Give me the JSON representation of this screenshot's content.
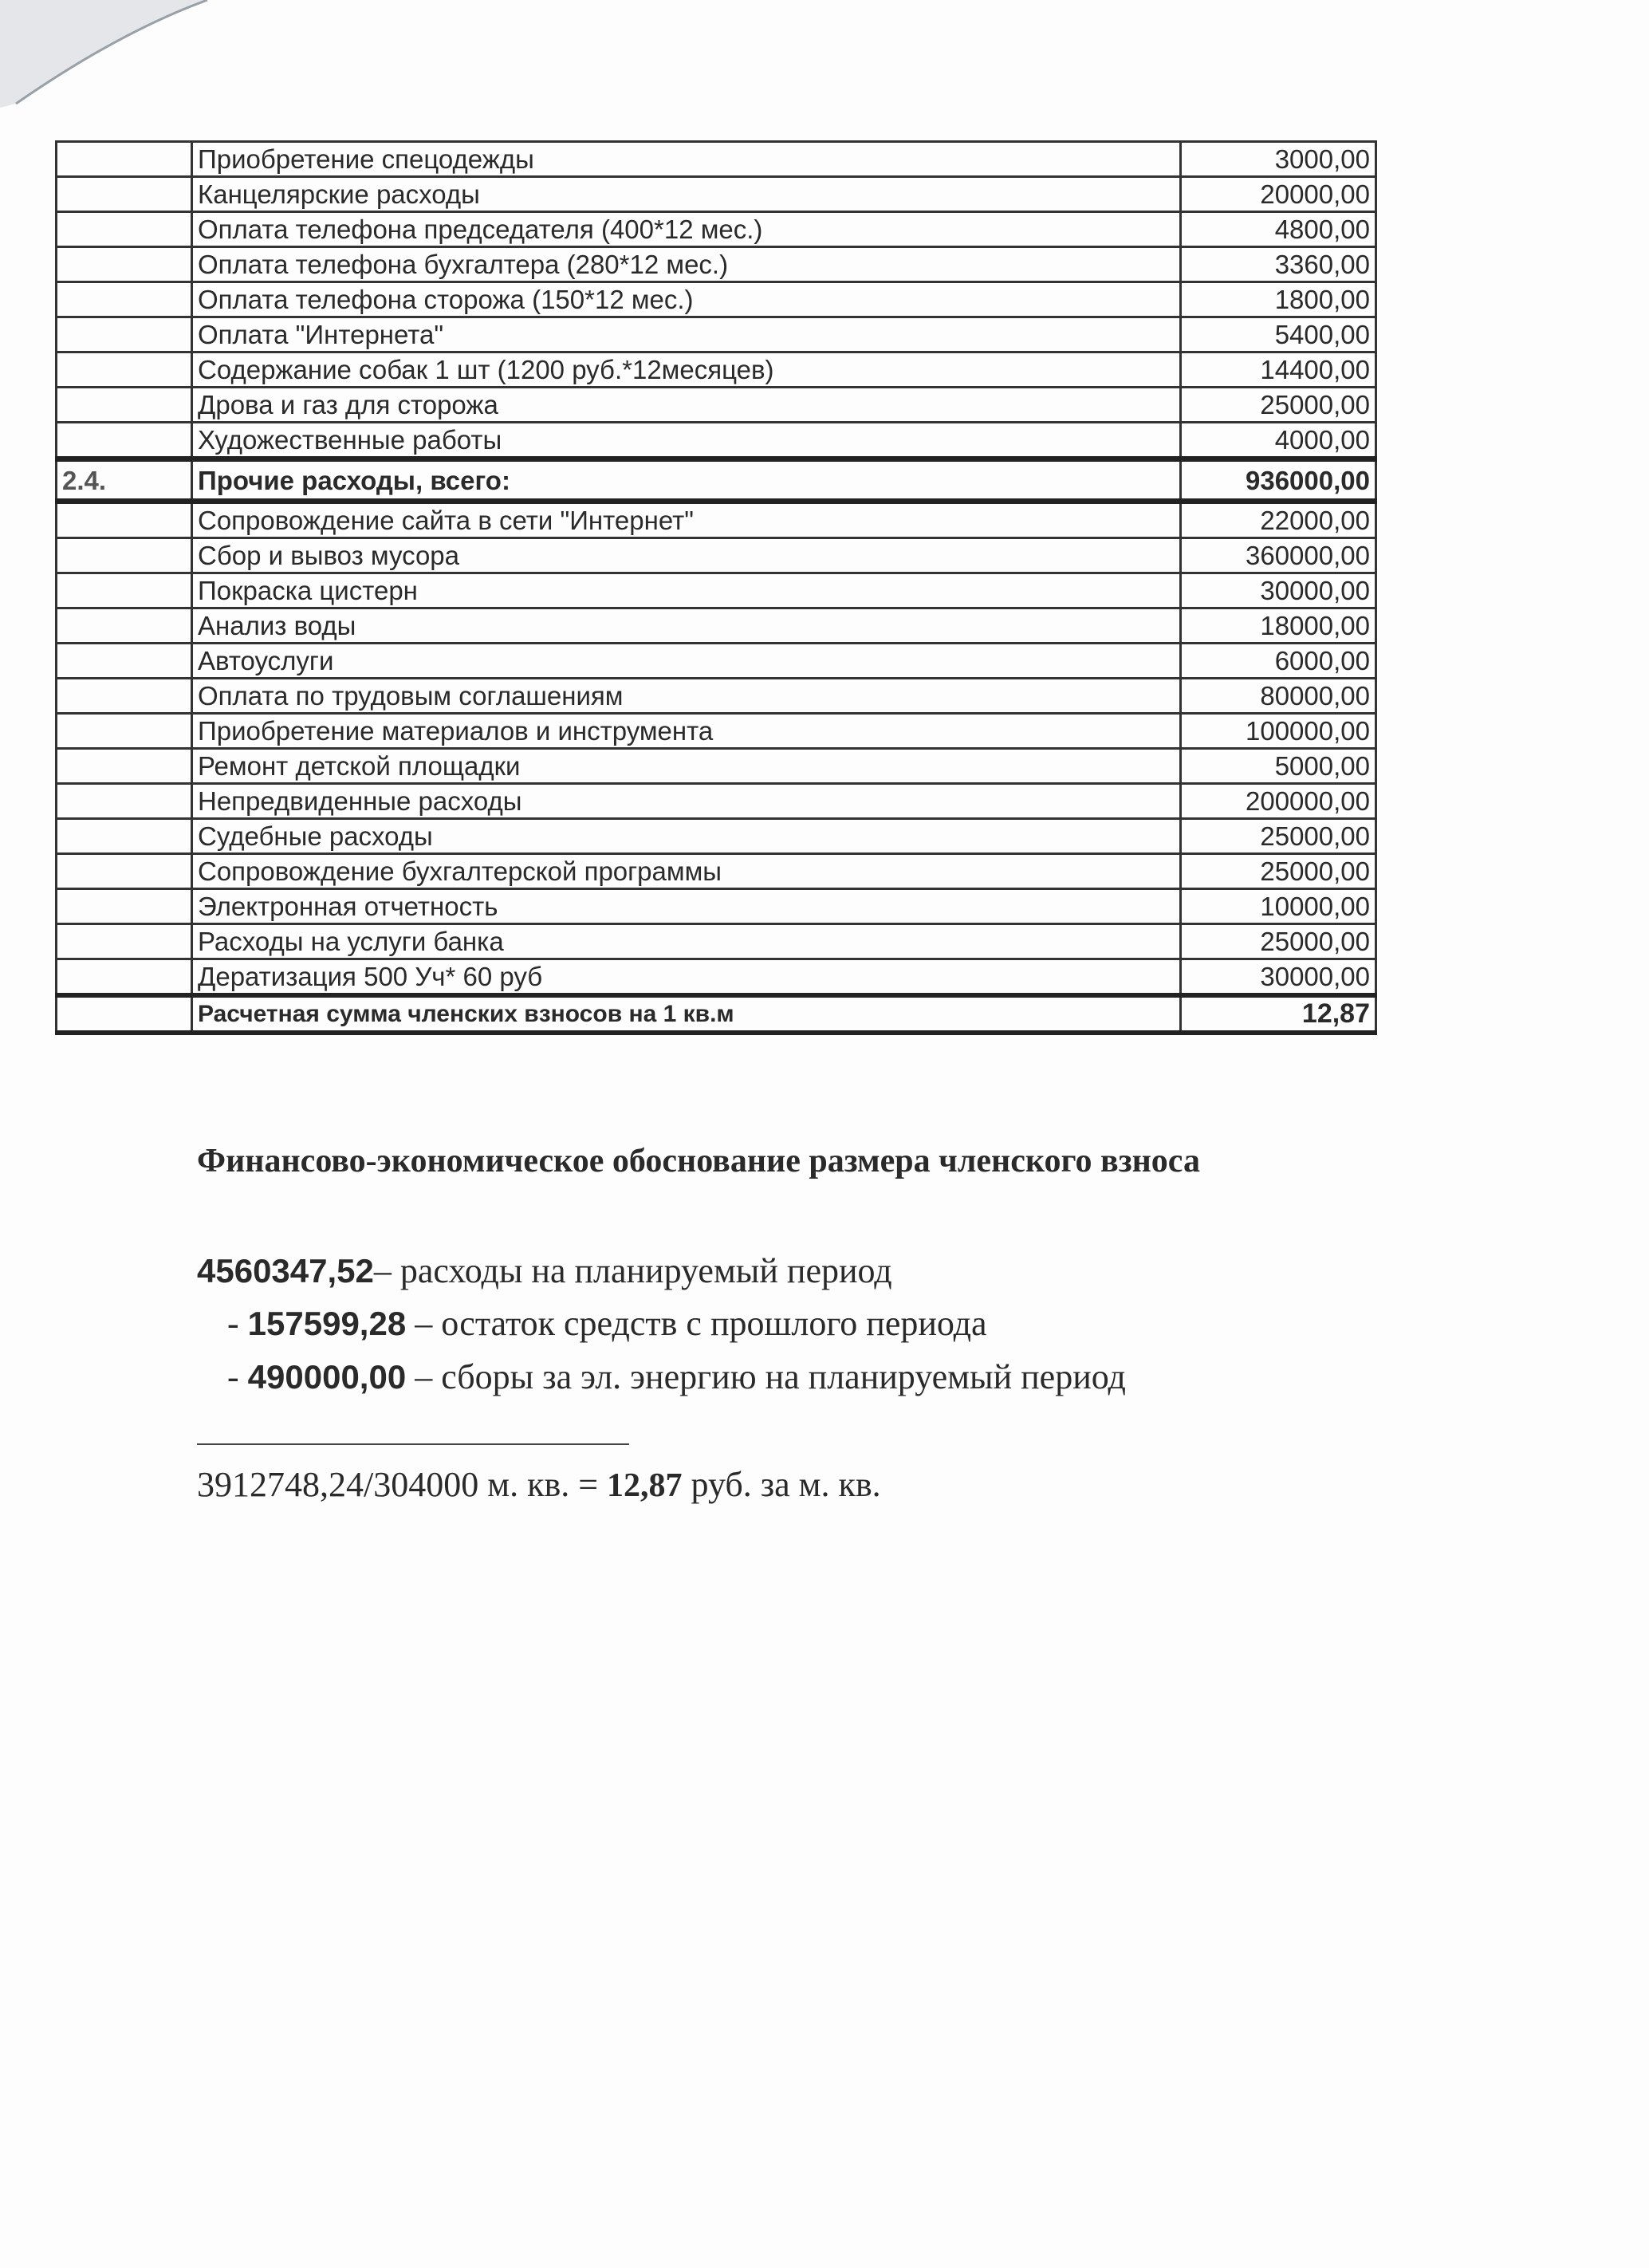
{
  "table": {
    "rows_before": [
      {
        "label": "Приобретение спецодежды",
        "amount": "3000,00"
      },
      {
        "label": "Канцелярские расходы",
        "amount": "20000,00"
      },
      {
        "label": "Оплата телефона председателя (400*12 мес.)",
        "amount": "4800,00"
      },
      {
        "label": "Оплата телефона бухгалтера (280*12 мес.)",
        "amount": "3360,00"
      },
      {
        "label": "Оплата телефона сторожа (150*12 мес.)",
        "amount": "1800,00"
      },
      {
        "label": "Оплата \"Интернета\"",
        "amount": "5400,00"
      },
      {
        "label": "Содержание собак 1 шт (1200 руб.*12месяцев)",
        "amount": "14400,00"
      },
      {
        "label": "Дрова и газ для сторожа",
        "amount": "25000,00"
      },
      {
        "label": "Художественные работы",
        "amount": "4000,00"
      }
    ],
    "section": {
      "number": "2.4.",
      "label": "Прочие расходы, всего:",
      "amount": "936000,00"
    },
    "rows_after": [
      {
        "label": "Сопровождение сайта в сети \"Интернет\"",
        "amount": "22000,00"
      },
      {
        "label": "Сбор и вывоз мусора",
        "amount": "360000,00"
      },
      {
        "label": "Покраска  цистерн",
        "amount": "30000,00"
      },
      {
        "label": "Анализ воды",
        "amount": "18000,00"
      },
      {
        "label": "Автоуслуги",
        "amount": "6000,00"
      },
      {
        "label": "Оплата по трудовым соглашениям",
        "amount": "80000,00"
      },
      {
        "label": "Приобретение материалов и инструмента",
        "amount": "100000,00"
      },
      {
        "label": "Ремонт детской площадки",
        "amount": "5000,00"
      },
      {
        "label": "Непредвиденные расходы",
        "amount": "200000,00"
      },
      {
        "label": "Судебные расходы",
        "amount": "25000,00"
      },
      {
        "label": "Сопровождение бухгалтерской программы",
        "amount": "25000,00"
      },
      {
        "label": "Электронная отчетность",
        "amount": "10000,00"
      },
      {
        "label": "Расходы на услуги банка",
        "amount": "25000,00"
      },
      {
        "label": "Дератизация 500 Уч* 60 руб",
        "amount": "30000,00"
      }
    ],
    "final": {
      "label": "Расчетная сумма членских взносов на 1 кв.м",
      "amount": "12,87"
    }
  },
  "justification": {
    "title": "Финансово-экономическое обоснование размера членского взноса",
    "lines": [
      {
        "prefix": "",
        "value": "4560347,52",
        "text": "– расходы на планируемый период"
      },
      {
        "prefix": "- ",
        "value": "157599,28",
        "text": " – остаток средств с прошлого периода"
      },
      {
        "prefix": "- ",
        "value": "490000,00",
        "text": " – сборы за эл. энергию на планируемый период"
      }
    ],
    "result": {
      "formula": "3912748,24/304000 м. кв. = ",
      "value": "12,87",
      "unit": " руб. за м. кв."
    }
  }
}
